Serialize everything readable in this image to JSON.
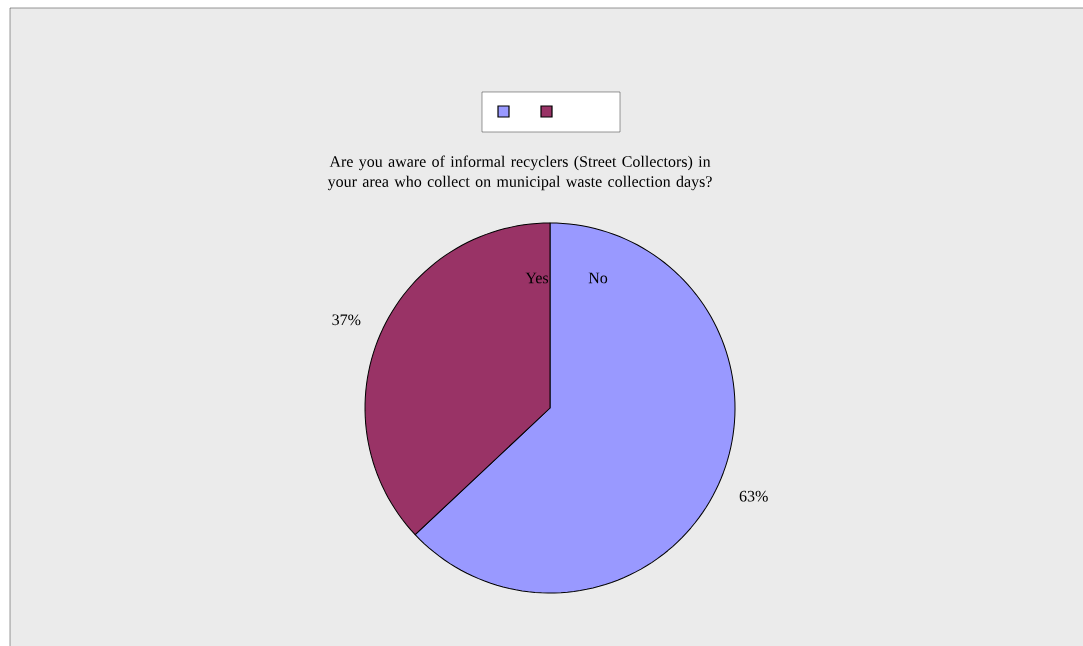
{
  "chart_data": {
    "type": "pie",
    "title": "Are you aware of informal recyclers (Street Collectors) in your area who collect on municipal waste collection days?",
    "categories": [
      "No",
      "Yes"
    ],
    "values": [
      63,
      37
    ],
    "colors": [
      "#9999ff",
      "#993366"
    ],
    "value_labels": [
      "63%",
      "37%"
    ]
  }
}
